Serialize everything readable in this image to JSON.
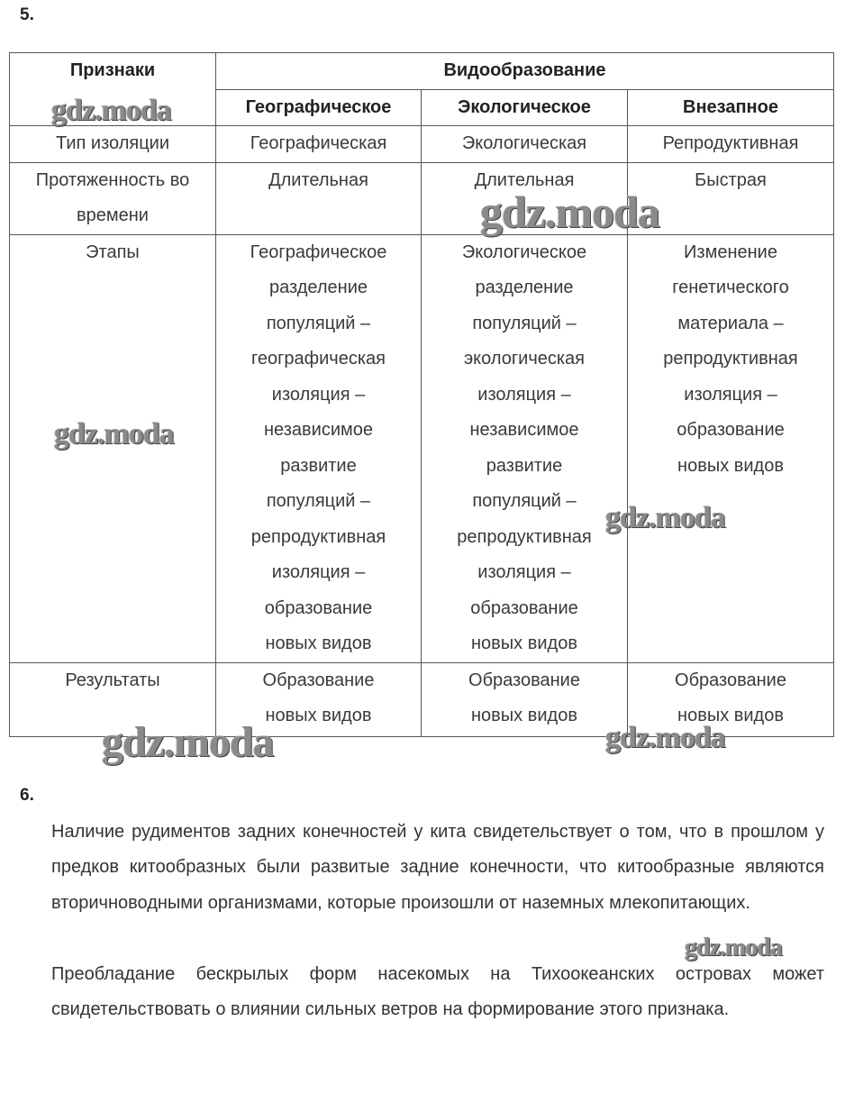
{
  "task5": {
    "number": "5.",
    "table": {
      "header_feature": "Признаки",
      "header_group": "Видообразование",
      "columns": [
        "Географическое",
        "Экологическое",
        "Внезапное"
      ],
      "rows": [
        {
          "feature": "Тип изоляции",
          "values": [
            "Географическая",
            "Экологическая",
            "Репродуктивная"
          ]
        },
        {
          "feature": "Протяженность во\nвремени",
          "values": [
            "Длительная",
            "Длительная",
            "Быстрая"
          ]
        },
        {
          "feature": "Этапы",
          "values": [
            "Географическое\nразделение\nпопуляций –\nгеографическая\nизоляция –\nнезависимое\nразвитие\nпопуляций –\nрепродуктивная\nизоляция –\nобразование\nновых видов",
            "Экологическое\nразделение\nпопуляций –\nэкологическая\nизоляция –\nнезависимое\nразвитие\nпопуляций –\nрепродуктивная\nизоляция –\nобразование\nновых видов",
            "Изменение\nгенетического\nматериала –\nрепродуктивная\nизоляция –\nобразование\nновых видов"
          ]
        },
        {
          "feature": "Результаты",
          "values": [
            "Образование\nновых видов",
            "Образование\nновых видов",
            "Образование\nновых видов"
          ]
        }
      ]
    }
  },
  "task6": {
    "number": "6.",
    "paragraphs": [
      "Наличие рудиментов задних конечностей у кита свидетельствует о том, что в прошлом у предков китообразных были развитые задние конечности, что китообразные являются вторичноводными организмами, которые произошли от наземных млекопитающих.",
      "Преобладание бескрылых форм насекомых на Тихоокеанских островах может свидетельствовать о влиянии сильных ветров на формирование этого признака."
    ]
  },
  "watermark": "gdz.moda"
}
